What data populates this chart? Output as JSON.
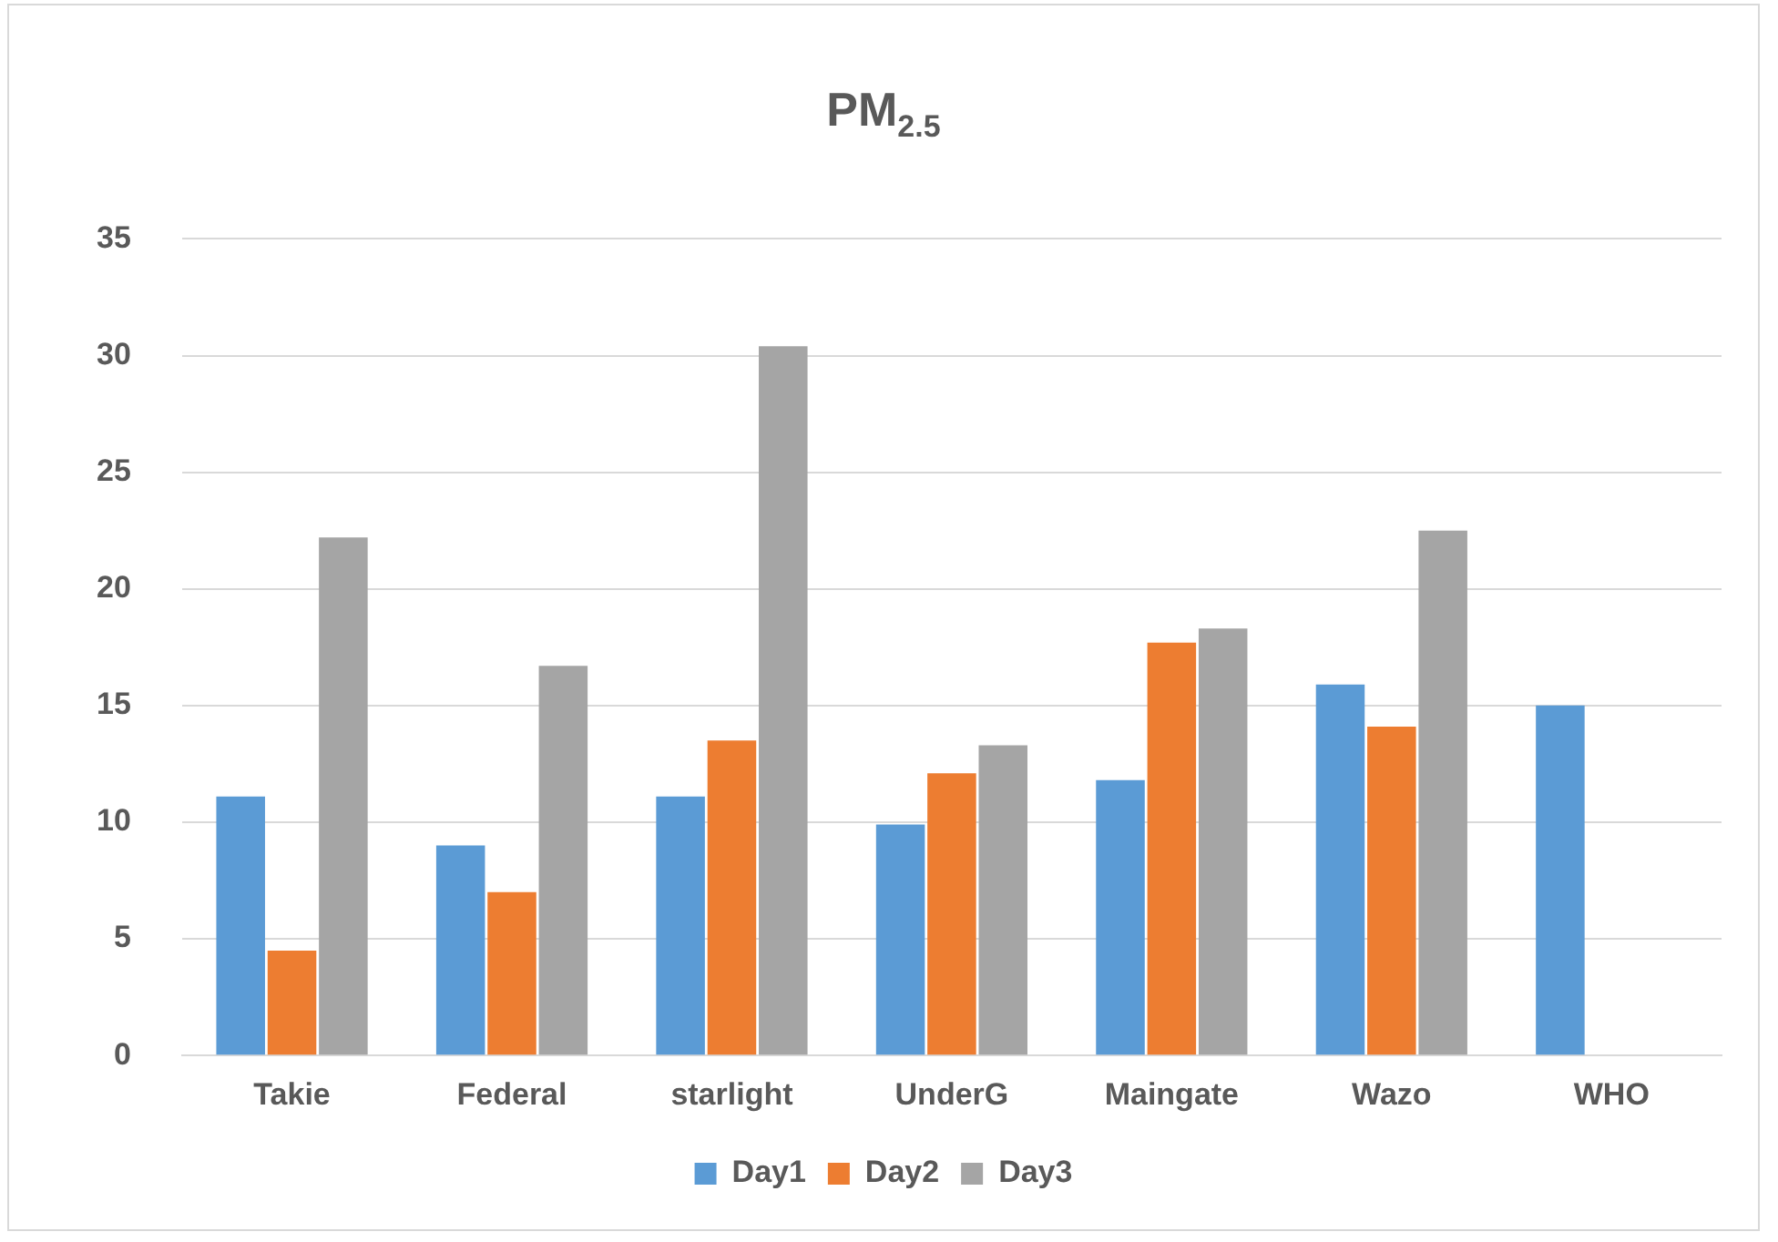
{
  "chart_data": {
    "type": "bar",
    "title": "PM$_{2.5}$",
    "categories": [
      "Takie",
      "Federal",
      "starlight",
      "UnderG",
      "Maingate",
      "Wazo",
      "WHO"
    ],
    "series": [
      {
        "name": "Day1",
        "color": "#5b9bd5",
        "values": [
          11.1,
          9.0,
          11.1,
          9.9,
          11.8,
          15.9,
          15.0
        ]
      },
      {
        "name": "Day2",
        "color": "#ed7d31",
        "values": [
          4.5,
          7.0,
          13.5,
          12.1,
          17.7,
          14.1,
          null
        ]
      },
      {
        "name": "Day3",
        "color": "#a5a5a5",
        "values": [
          22.2,
          16.7,
          30.4,
          13.3,
          18.3,
          22.5,
          null
        ]
      }
    ],
    "ylim": [
      0,
      35
    ],
    "yticks": [
      0,
      5,
      10,
      15,
      20,
      25,
      30,
      35
    ],
    "grid": "y",
    "legend": "bottom"
  }
}
